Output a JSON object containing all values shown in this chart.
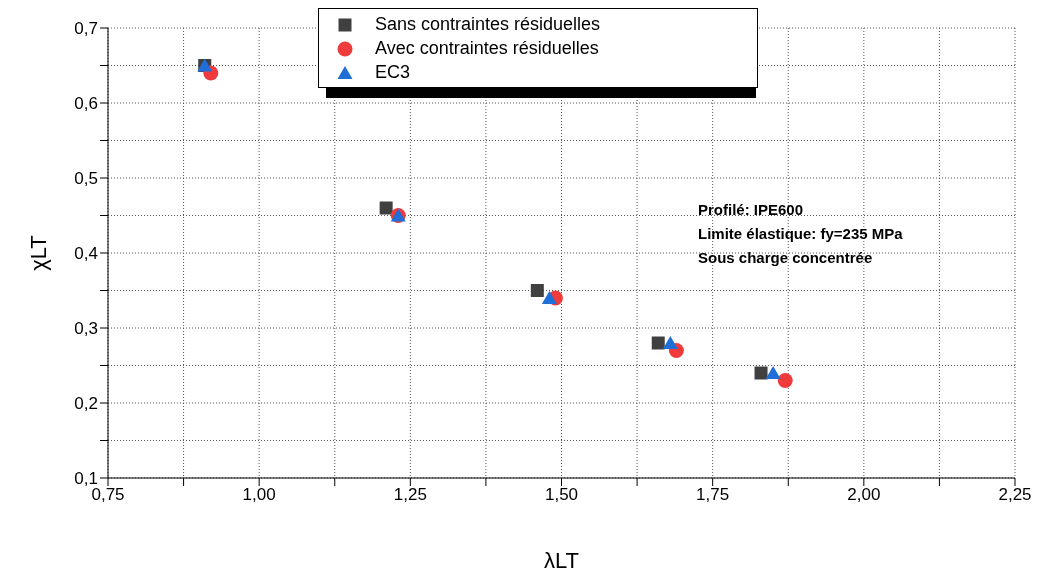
{
  "chart_data": {
    "type": "scatter",
    "xlabel": "λLT",
    "ylabel": "χLT",
    "xlim": [
      0.75,
      2.25
    ],
    "ylim": [
      0.1,
      0.7
    ],
    "xticks": [
      {
        "value": 0.75,
        "label": "0,75"
      },
      {
        "value": 0.875,
        "label": null
      },
      {
        "value": 1,
        "label": "1,00"
      },
      {
        "value": 1.125,
        "label": null
      },
      {
        "value": 1.25,
        "label": "1,25"
      },
      {
        "value": 1.375,
        "label": null
      },
      {
        "value": 1.5,
        "label": "1,50"
      },
      {
        "value": 1.625,
        "label": null
      },
      {
        "value": 1.75,
        "label": "1,75"
      },
      {
        "value": 1.875,
        "label": null
      },
      {
        "value": 2,
        "label": "2,00"
      },
      {
        "value": 2.125,
        "label": null
      },
      {
        "value": 2.25,
        "label": "2,25"
      }
    ],
    "yticks": [
      {
        "value": 0.1,
        "label": "0,1"
      },
      {
        "value": 0.15,
        "label": null
      },
      {
        "value": 0.2,
        "label": "0,2"
      },
      {
        "value": 0.25,
        "label": null
      },
      {
        "value": 0.3,
        "label": "0,3"
      },
      {
        "value": 0.35,
        "label": null
      },
      {
        "value": 0.4,
        "label": "0,4"
      },
      {
        "value": 0.45,
        "label": null
      },
      {
        "value": 0.5,
        "label": "0,5"
      },
      {
        "value": 0.55,
        "label": null
      },
      {
        "value": 0.6,
        "label": "0,6"
      },
      {
        "value": 0.65,
        "label": null
      },
      {
        "value": 0.7,
        "label": "0,7"
      }
    ],
    "grid": true,
    "legend": "top",
    "annotations": [
      "Profilé: IPE600",
      "Limite élastique: fy=235 MPa",
      "Sous charge concentrée"
    ],
    "series": [
      {
        "name": "Sans contraintes résiduelles",
        "color": "#404040",
        "marker": "square",
        "x": [
          0.91,
          1.21,
          1.46,
          1.66,
          1.83
        ],
        "values": [
          0.65,
          0.46,
          0.35,
          0.28,
          0.24
        ]
      },
      {
        "name": "Avec contraintes résiduelles",
        "color": "#ef3b3b",
        "marker": "circle",
        "x": [
          0.92,
          1.23,
          1.49,
          1.69,
          1.87
        ],
        "values": [
          0.64,
          0.45,
          0.34,
          0.27,
          0.23
        ]
      },
      {
        "name": "EC3",
        "color": "#1f6fd6",
        "marker": "triangle",
        "x": [
          0.91,
          1.23,
          1.48,
          1.68,
          1.85
        ],
        "values": [
          0.65,
          0.45,
          0.34,
          0.28,
          0.24
        ]
      }
    ]
  }
}
